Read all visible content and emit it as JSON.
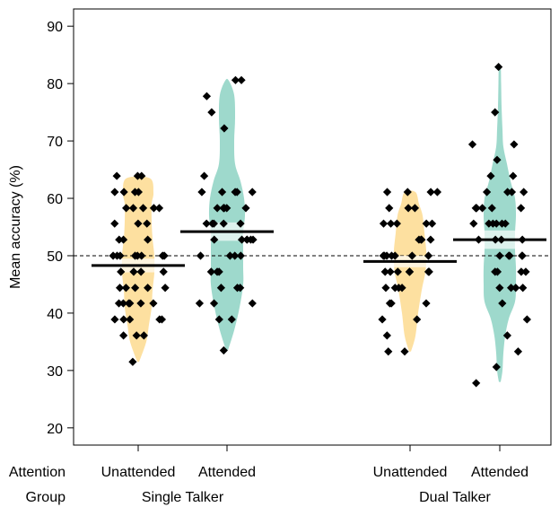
{
  "chart_data": {
    "type": "scatter",
    "ylabel": "Mean accuracy (%)",
    "ylim": [
      17,
      93
    ],
    "yticks": [
      20,
      30,
      40,
      50,
      60,
      70,
      80,
      90
    ],
    "reference_line": 50,
    "row_labels": {
      "attention": "Attention",
      "group": "Group"
    },
    "groups": [
      {
        "name": "Single Talker",
        "conditions": [
          "Unattended",
          "Attended"
        ]
      },
      {
        "name": "Dual Talker",
        "conditions": [
          "Unattended",
          "Attended"
        ]
      }
    ],
    "colors": {
      "Unattended": "#FDE0A0",
      "Attended": "#9ED9CC",
      "points": "#000000",
      "mean": "#000000"
    },
    "series": [
      {
        "group": "Single Talker",
        "condition": "Unattended",
        "mean": 48.3,
        "ci": [
          47.1,
          49.5
        ],
        "violin": [
          [
            31.5,
            1
          ],
          [
            35,
            9
          ],
          [
            38,
            12
          ],
          [
            41,
            15
          ],
          [
            44,
            16
          ],
          [
            47,
            18
          ],
          [
            50,
            18
          ],
          [
            53,
            16
          ],
          [
            56,
            15
          ],
          [
            59,
            15
          ],
          [
            61,
            17
          ],
          [
            63.5,
            13
          ]
        ],
        "points": [
          63.9,
          63.9,
          63.9,
          61.1,
          61.1,
          61.1,
          61.1,
          58.3,
          58.3,
          58.3,
          58.3,
          58.3,
          55.6,
          55.6,
          55.6,
          52.8,
          52.8,
          52.8,
          50,
          50,
          50,
          50,
          50,
          50,
          50,
          50,
          47.2,
          47.2,
          47.2,
          47.2,
          44.4,
          44.4,
          44.4,
          44.4,
          44.4,
          41.7,
          41.7,
          41.7,
          41.7,
          41.7,
          41.7,
          38.9,
          38.9,
          38.9,
          38.9,
          38.9,
          36.1,
          36.1,
          36.1,
          31.5
        ]
      },
      {
        "group": "Single Talker",
        "condition": "Attended",
        "mean": 54.2,
        "ci": [
          52.6,
          55.8
        ],
        "violin": [
          [
            33.5,
            1
          ],
          [
            37,
            8
          ],
          [
            41,
            14
          ],
          [
            45,
            18
          ],
          [
            48,
            18
          ],
          [
            51,
            18
          ],
          [
            54,
            18
          ],
          [
            57,
            20
          ],
          [
            60,
            19
          ],
          [
            63,
            15
          ],
          [
            66,
            9
          ],
          [
            70,
            8
          ],
          [
            74,
            9
          ],
          [
            78,
            8
          ],
          [
            80.5,
            2
          ]
        ],
        "points": [
          80.6,
          80.6,
          77.8,
          75,
          72.2,
          63.9,
          61.1,
          61.1,
          61.1,
          61.1,
          61.1,
          58.3,
          58.3,
          58.3,
          58.3,
          58.3,
          58.3,
          55.6,
          55.6,
          55.6,
          55.6,
          55.6,
          52.8,
          52.8,
          52.8,
          52.8,
          52.8,
          52.8,
          50,
          50,
          50,
          50,
          47.2,
          47.2,
          47.2,
          44.4,
          44.4,
          44.4,
          41.7,
          41.7,
          41.7,
          38.9,
          38.9,
          33.5
        ]
      },
      {
        "group": "Dual Talker",
        "condition": "Unattended",
        "mean": 49,
        "ci": [
          48,
          50
        ],
        "violin": [
          [
            33.3,
            1
          ],
          [
            36,
            6
          ],
          [
            40,
            9
          ],
          [
            44,
            13
          ],
          [
            47,
            17
          ],
          [
            49,
            18
          ],
          [
            51,
            18
          ],
          [
            54,
            16
          ],
          [
            57,
            14
          ],
          [
            59,
            10
          ],
          [
            61.1,
            6
          ]
        ],
        "points": [
          61.1,
          61.1,
          61.1,
          61.1,
          58.3,
          58.3,
          58.3,
          55.6,
          55.6,
          55.6,
          55.6,
          55.6,
          52.8,
          52.8,
          52.8,
          52.8,
          50,
          50,
          50,
          50,
          50,
          50,
          50,
          47.2,
          47.2,
          47.2,
          47.2,
          47.2,
          47.2,
          47.2,
          44.4,
          44.4,
          44.4,
          44.4,
          41.7,
          41.7,
          41.7,
          38.9,
          38.9,
          36.1,
          33.3,
          33.3
        ]
      },
      {
        "group": "Dual Talker",
        "condition": "Attended",
        "mean": 52.8,
        "ci": [
          51.2,
          54.4
        ],
        "violin": [
          [
            28,
            1
          ],
          [
            30,
            3
          ],
          [
            33,
            4
          ],
          [
            36,
            6
          ],
          [
            39,
            10
          ],
          [
            42,
            17
          ],
          [
            45,
            18
          ],
          [
            48,
            18
          ],
          [
            51,
            17
          ],
          [
            54,
            17
          ],
          [
            57,
            18
          ],
          [
            60,
            17
          ],
          [
            63,
            12
          ],
          [
            66,
            8
          ],
          [
            69,
            4
          ],
          [
            72,
            3
          ],
          [
            76,
            2
          ],
          [
            80,
            1.5
          ],
          [
            83,
            1
          ]
        ],
        "points": [
          82.9,
          75,
          69.4,
          69.4,
          66.7,
          63.9,
          63.9,
          61.1,
          61.1,
          61.1,
          61.1,
          58.3,
          58.3,
          58.3,
          58.3,
          58.3,
          58.3,
          55.6,
          55.6,
          55.6,
          55.6,
          55.6,
          55.6,
          52.8,
          52.8,
          52.8,
          52.8,
          50,
          50,
          50,
          50,
          50,
          47.2,
          47.2,
          47.2,
          47.2,
          44.4,
          44.4,
          44.4,
          44.4,
          41.7,
          38.9,
          36.1,
          33.3,
          30.6,
          27.8
        ]
      }
    ]
  }
}
